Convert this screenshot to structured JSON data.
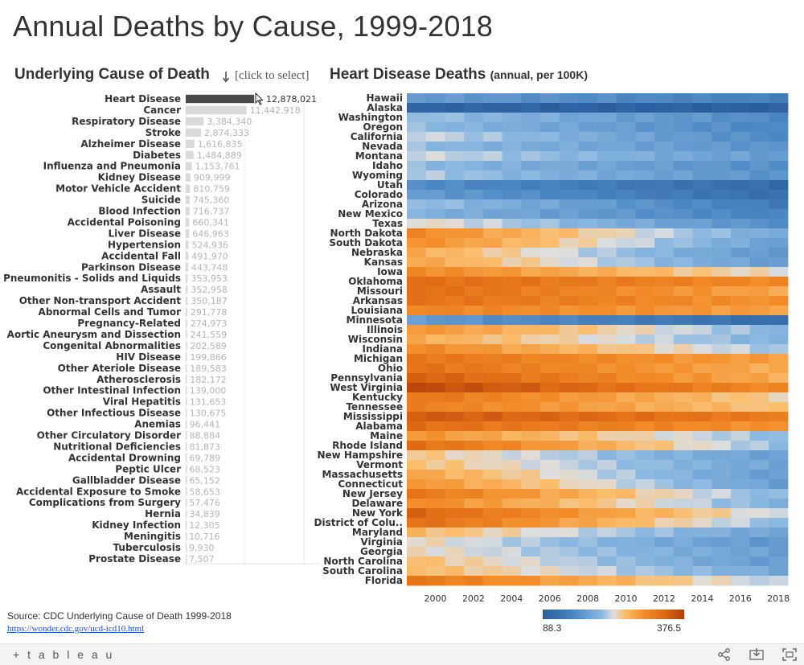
{
  "page": {
    "title": "Annual Deaths by Cause, 1999-2018",
    "left_title": "Underlying Cause of Death",
    "click_hint": "[click to select]",
    "right_title": "Heart Disease Deaths",
    "right_subtitle": "(annual, per 100K)",
    "source": "Source: CDC Underlying Cause of Death 1999-2018",
    "source_link": "https://wonder.cdc.gov/ucd-icd10.html",
    "footer_logo": "+ t a b l e a u",
    "legend_min": "88.3",
    "legend_max": "376.5",
    "sort_icon": "sort-arrow-icon"
  },
  "colors": {
    "selected_bar": "#4a4a4a",
    "bar": "#d9d9d9",
    "low": "#2a5d9c",
    "mid": "#dddddd",
    "high": "#b5420b"
  },
  "chart_data": [
    {
      "type": "bar",
      "orientation": "horizontal",
      "selected": "Heart Disease",
      "categories": [
        "Heart Disease",
        "Cancer",
        "Respiratory Disease",
        "Stroke",
        "Alzheimer Disease",
        "Diabetes",
        "Influenza and Pneumonia",
        "Kidney Disease",
        "Motor Vehicle Accident",
        "Suicide",
        "Blood Infection",
        "Accidental Poisoning",
        "Liver Disease",
        "Hypertension",
        "Accidental Fall",
        "Parkinson Disease",
        "Pneumonitis - Solids and Liquids",
        "Assault",
        "Other Non-transport Accident",
        "Abnormal Cells and Tumor",
        "Pregnancy-Related",
        "Aortic Aneurysm and Dissection",
        "Congenital Abnormalities",
        "HIV Disease",
        "Other Ateriole Disease",
        "Atherosclerosis",
        "Other Intestinal Infection",
        "Viral Hepatitis",
        "Other Infectious Disease",
        "Anemias",
        "Other Circulatory Disorder",
        "Nutritional Deficiencies",
        "Accidental Drowning",
        "Peptic Ulcer",
        "Gallbladder Disease",
        "Accidental Exposure to Smoke",
        "Complications from Surgery",
        "Hernia",
        "Kidney Infection",
        "Meningitis",
        "Tuberculosis",
        "Prostate Disease"
      ],
      "values": [
        12878021,
        11442918,
        3384340,
        2874333,
        1616835,
        1484889,
        1153761,
        909999,
        810759,
        745360,
        716737,
        660341,
        646963,
        524936,
        491970,
        443748,
        353953,
        352958,
        350187,
        291778,
        274973,
        241559,
        202589,
        199866,
        189583,
        182172,
        139000,
        131653,
        130675,
        96441,
        88884,
        81873,
        69789,
        68523,
        65152,
        58653,
        57476,
        34839,
        12305,
        10716,
        9930,
        7507
      ],
      "labels": [
        "12,878,021",
        "11,442,918",
        "3,384,340",
        "2,874,333",
        "1,616,835",
        "1,484,889",
        "1,153,761",
        "909,999",
        "810,759",
        "745,360",
        "716,737",
        "660,341",
        "646,963",
        "524,936",
        "491,970",
        "443,748",
        "353,953",
        "352,958",
        "350,187",
        "291,778",
        "274,973",
        "241,559",
        "202,589",
        "199,866",
        "189,583",
        "182,172",
        "139,000",
        "131,653",
        "130,675",
        "96,441",
        "88,884",
        "81,873",
        "69,789",
        "68,523",
        "65,152",
        "58,653",
        "57,476",
        "34,839",
        "12,305",
        "10,716",
        "9,930",
        "7,507"
      ],
      "xlim": [
        0,
        13000000
      ]
    },
    {
      "type": "heatmap",
      "title": "Heart Disease Deaths",
      "subtitle": "(annual, per 100K)",
      "x_ticks": [
        "2000",
        "2002",
        "2004",
        "2006",
        "2008",
        "2010",
        "2012",
        "2014",
        "2016",
        "2018"
      ],
      "years": [
        1999,
        2000,
        2001,
        2002,
        2003,
        2004,
        2005,
        2006,
        2007,
        2008,
        2009,
        2010,
        2011,
        2012,
        2013,
        2014,
        2015,
        2016,
        2017,
        2018
      ],
      "color_range": [
        88.3,
        376.5
      ],
      "rows": [
        {
          "state": "Hawaii",
          "start": 175,
          "end": 140
        },
        {
          "state": "Alaska",
          "start": 100,
          "end": 92
        },
        {
          "state": "Washington",
          "start": 215,
          "end": 155
        },
        {
          "state": "Oregon",
          "start": 210,
          "end": 150
        },
        {
          "state": "California",
          "start": 230,
          "end": 155
        },
        {
          "state": "Nevada",
          "start": 210,
          "end": 165
        },
        {
          "state": "Montana",
          "start": 230,
          "end": 175
        },
        {
          "state": "Idaho",
          "start": 210,
          "end": 160
        },
        {
          "state": "Wyoming",
          "start": 220,
          "end": 165
        },
        {
          "state": "Utah",
          "start": 160,
          "end": 110
        },
        {
          "state": "Colorado",
          "start": 175,
          "end": 115
        },
        {
          "state": "Arizona",
          "start": 215,
          "end": 135
        },
        {
          "state": "New Mexico",
          "start": 200,
          "end": 145
        },
        {
          "state": "Texas",
          "start": 240,
          "end": 160
        },
        {
          "state": "North Dakota",
          "start": 300,
          "end": 190
        },
        {
          "state": "South Dakota",
          "start": 295,
          "end": 180
        },
        {
          "state": "Nebraska",
          "start": 270,
          "end": 170
        },
        {
          "state": "Kansas",
          "start": 275,
          "end": 175
        },
        {
          "state": "Iowa",
          "start": 300,
          "end": 235
        },
        {
          "state": "Oklahoma",
          "start": 330,
          "end": 300
        },
        {
          "state": "Missouri",
          "start": 330,
          "end": 275
        },
        {
          "state": "Arkansas",
          "start": 325,
          "end": 290
        },
        {
          "state": "Louisiana",
          "start": 305,
          "end": 280
        },
        {
          "state": "Minnesota",
          "start": 175,
          "end": 110
        },
        {
          "state": "Illinois",
          "start": 290,
          "end": 205
        },
        {
          "state": "Wisconsin",
          "start": 270,
          "end": 200
        },
        {
          "state": "Indiana",
          "start": 300,
          "end": 215
        },
        {
          "state": "Michigan",
          "start": 320,
          "end": 280
        },
        {
          "state": "Ohio",
          "start": 325,
          "end": 270
        },
        {
          "state": "Pennsylvania",
          "start": 345,
          "end": 270
        },
        {
          "state": "West Virginia",
          "start": 365,
          "end": 300
        },
        {
          "state": "Kentucky",
          "start": 320,
          "end": 245
        },
        {
          "state": "Tennessee",
          "start": 310,
          "end": 250
        },
        {
          "state": "Mississippi",
          "start": 350,
          "end": 315
        },
        {
          "state": "Alabama",
          "start": 330,
          "end": 290
        },
        {
          "state": "Maine",
          "start": 290,
          "end": 210
        },
        {
          "state": "Rhode Island",
          "start": 330,
          "end": 210
        },
        {
          "state": "New Hampshire",
          "start": 250,
          "end": 180
        },
        {
          "state": "Vermont",
          "start": 255,
          "end": 185
        },
        {
          "state": "Massachusetts",
          "start": 275,
          "end": 175
        },
        {
          "state": "Connecticut",
          "start": 290,
          "end": 180
        },
        {
          "state": "New Jersey",
          "start": 320,
          "end": 205
        },
        {
          "state": "Delaware",
          "start": 300,
          "end": 200
        },
        {
          "state": "New York",
          "start": 340,
          "end": 225
        },
        {
          "state": "District of Colu..",
          "start": 330,
          "end": 210
        },
        {
          "state": "Maryland",
          "start": 260,
          "end": 185
        },
        {
          "state": "Virginia",
          "start": 240,
          "end": 170
        },
        {
          "state": "Georgia",
          "start": 240,
          "end": 180
        },
        {
          "state": "North Carolina",
          "start": 255,
          "end": 175
        },
        {
          "state": "South Carolina",
          "start": 260,
          "end": 190
        },
        {
          "state": "Florida",
          "start": 320,
          "end": 220
        }
      ]
    }
  ]
}
